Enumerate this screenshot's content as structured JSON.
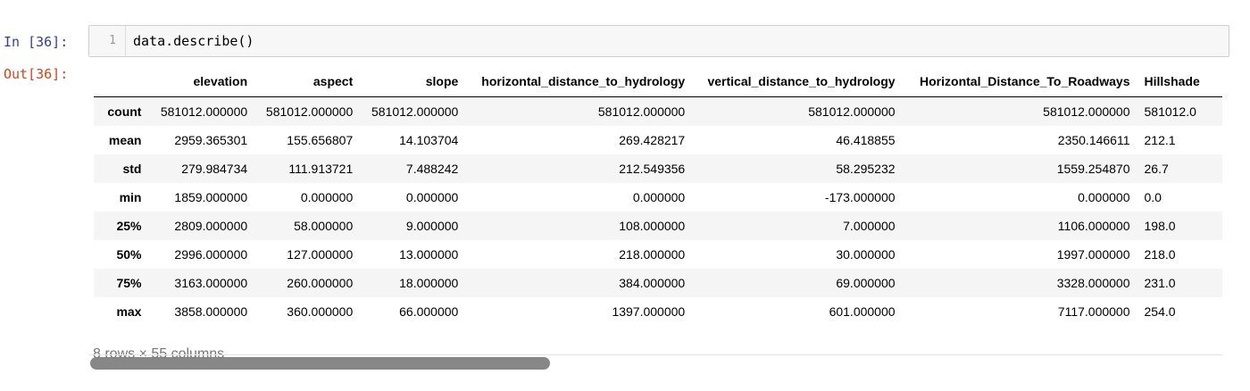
{
  "cell": {
    "in_prompt": "In [36]:",
    "out_prompt": "Out[36]:",
    "line_number": "1",
    "code": "data.describe()"
  },
  "table": {
    "columns": [
      "",
      "elevation",
      "aspect",
      "slope",
      "horizontal_distance_to_hydrology",
      "vertical_distance_to_hydrology",
      "Horizontal_Distance_To_Roadways",
      "Hillshade"
    ],
    "rows": [
      {
        "label": "count",
        "cells": [
          "581012.000000",
          "581012.000000",
          "581012.000000",
          "581012.000000",
          "581012.000000",
          "581012.000000",
          "581012.0"
        ]
      },
      {
        "label": "mean",
        "cells": [
          "2959.365301",
          "155.656807",
          "14.103704",
          "269.428217",
          "46.418855",
          "2350.146611",
          "212.1"
        ]
      },
      {
        "label": "std",
        "cells": [
          "279.984734",
          "111.913721",
          "7.488242",
          "212.549356",
          "58.295232",
          "1559.254870",
          "26.7"
        ]
      },
      {
        "label": "min",
        "cells": [
          "1859.000000",
          "0.000000",
          "0.000000",
          "0.000000",
          "-173.000000",
          "0.000000",
          "0.0"
        ]
      },
      {
        "label": "25%",
        "cells": [
          "2809.000000",
          "58.000000",
          "9.000000",
          "108.000000",
          "7.000000",
          "1106.000000",
          "198.0"
        ]
      },
      {
        "label": "50%",
        "cells": [
          "2996.000000",
          "127.000000",
          "13.000000",
          "218.000000",
          "30.000000",
          "1997.000000",
          "218.0"
        ]
      },
      {
        "label": "75%",
        "cells": [
          "3163.000000",
          "260.000000",
          "18.000000",
          "384.000000",
          "69.000000",
          "3328.000000",
          "231.0"
        ]
      },
      {
        "label": "max",
        "cells": [
          "3858.000000",
          "360.000000",
          "66.000000",
          "1397.000000",
          "601.000000",
          "7117.000000",
          "254.0"
        ]
      }
    ]
  },
  "shape_note": "8 rows × 55 columns"
}
